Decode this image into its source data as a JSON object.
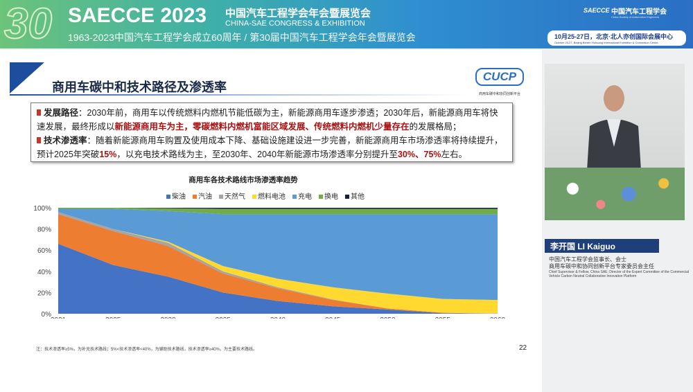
{
  "header": {
    "logo_number": "30",
    "event": "SAECCE 2023",
    "title_cn": "中国汽车工程学会年会暨展览会",
    "title_en": "CHINA-SAE CONGRESS & EXHIBITION",
    "subtitle": "1963-2023中国汽车工程学会成立60周年 / 第30届中国汽车工程学会年会暨展览会",
    "org_logo": "SAECCE",
    "org_name": "中国汽车工程学会",
    "org_name_en": "China Society of Automotive Engineers",
    "date": "10月25-27日，北京·北人亦创国际会展中心",
    "date_en": "October 25-27, Beijing Beiren Yichuang International Exhibition & Convention Center"
  },
  "slide": {
    "title": "商用车碳中和技术路径及渗透率",
    "logo": "CUCP",
    "logo_sub": "商用车碳中和协同创新平台",
    "bullets": [
      {
        "label": "发展路径",
        "text1": "：2030年前，商用车以传统燃料内燃机节能低碳为主，新能源商用车逐步渗透；2030年后，新能源商用车将快速发展，最终形成以",
        "hl": "新能源商用车为主，零碳燃料内燃机富能区域发展、传统燃料内燃机少量存在",
        "text2": "的发展格局；"
      },
      {
        "label": "技术渗透率",
        "text1": "：随着新能源商用车购置及使用成本下降、基础设施建设进一步完善，新能源商用车市场渗透率将持续提升，预计2025年突破",
        "hl1": "15%",
        "text2": "，以充电技术路线为主，至2030年、2040年新能源市场渗透率分别提升至",
        "hl2": "30%、75%",
        "text3": "左右。"
      }
    ],
    "note": "注：技术渗透率≥5%，为补充技术路线；5%<技术渗透率<40%，为辅助技术路线，技术渗透率≥40%，为主要技术路线。",
    "page": "22"
  },
  "chart_data": {
    "type": "area",
    "stacked": true,
    "title": "商用车各技术路线市场渗透率趋势",
    "legend_position": "top",
    "categories": [
      "2021",
      "2025",
      "2030",
      "2035",
      "2040",
      "2045",
      "2050",
      "2055",
      "2060"
    ],
    "ylim": [
      0,
      100
    ],
    "yticks": [
      "0%",
      "20%",
      "40%",
      "60%",
      "80%",
      "100%"
    ],
    "series": [
      {
        "name": "柴油",
        "color": "#4472c4",
        "values": [
          66,
          46,
          35,
          20,
          12,
          7,
          4,
          0.5,
          0
        ]
      },
      {
        "name": "汽油",
        "color": "#ed7d31",
        "values": [
          28,
          32,
          29,
          18,
          12,
          6,
          1,
          0.5,
          0
        ]
      },
      {
        "name": "天然气",
        "color": "#a5a5a5",
        "values": [
          2,
          2,
          3,
          2,
          1,
          0.5,
          0,
          0,
          0.3
        ]
      },
      {
        "name": "燃料电池",
        "color": "#ffd930",
        "values": [
          0,
          0,
          1,
          5,
          8,
          11.5,
          14,
          13,
          12.7
        ]
      },
      {
        "name": "充电",
        "color": "#5b9bd5",
        "values": [
          3,
          19,
          29,
          49,
          61,
          69,
          75,
          80,
          81
        ]
      },
      {
        "name": "换电",
        "color": "#70ad47",
        "values": [
          1,
          1,
          2.5,
          5,
          5,
          5,
          5,
          5,
          5
        ]
      },
      {
        "name": "其他",
        "color": "#1a1f3a",
        "values": [
          0,
          0,
          0.5,
          1,
          1,
          1,
          1,
          1,
          1
        ]
      }
    ]
  },
  "speaker": {
    "name": "李开国  LI Kaiguo",
    "role_cn_1": "中国汽车工程学会监事长、会士",
    "role_cn_2": "商用车碳中和协同创新平台专家委员会主任",
    "role_en": "Chief Supervisor & Fellow, China SAE; Director of the Expert Committee of the Commercial Vehicle Carbon Neutral Collaborative Innovation Platform"
  }
}
